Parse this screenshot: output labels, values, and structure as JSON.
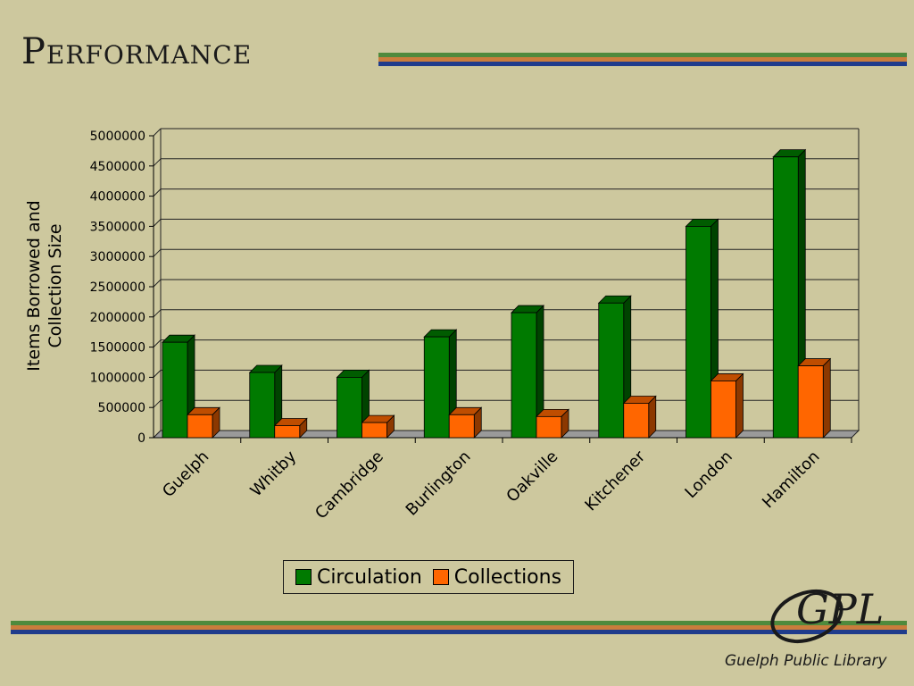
{
  "slide": {
    "title": "Performance",
    "stripe_colors": [
      "#4f8a3d",
      "#c97d3c",
      "#1f3c8c"
    ],
    "background": "#cdc89e"
  },
  "logo": {
    "mark": "GPL",
    "caption": "Guelph Public Library"
  },
  "chart_data": {
    "type": "bar",
    "title": "",
    "xlabel": "",
    "ylabel": [
      "Items Borrowed and",
      "Collection Size"
    ],
    "ylim": [
      0,
      5000000
    ],
    "yticks": [
      0,
      500000,
      1000000,
      1500000,
      2000000,
      2500000,
      3000000,
      3500000,
      4000000,
      4500000,
      5000000
    ],
    "grid": true,
    "legend_position": "bottom",
    "categories": [
      "Guelph",
      "Whitby",
      "Cambridge",
      "Burlington",
      "Oakville",
      "Kitchener",
      "London",
      "Hamilton"
    ],
    "series": [
      {
        "name": "Circulation",
        "color": "#007a00",
        "values": [
          1580000,
          1080000,
          1000000,
          1670000,
          2070000,
          2230000,
          3500000,
          4650000
        ]
      },
      {
        "name": "Collections",
        "color": "#ff6600",
        "values": [
          380000,
          200000,
          250000,
          380000,
          350000,
          570000,
          940000,
          1190000
        ]
      }
    ]
  }
}
